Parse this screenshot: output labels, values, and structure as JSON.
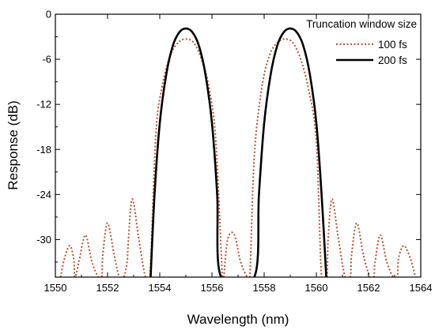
{
  "chart_data": {
    "type": "line",
    "xlabel": "Wavelength (nm)",
    "ylabel": "Response (dB)",
    "xlim": [
      1550,
      1564
    ],
    "ylim": [
      -35,
      0
    ],
    "x_ticks": [
      1550,
      1552,
      1554,
      1556,
      1558,
      1560,
      1562,
      1564
    ],
    "y_ticks": [
      0,
      -6,
      -12,
      -18,
      -24,
      -30
    ],
    "x_tick_labels": [
      "1550",
      "1552",
      "1554",
      "1556",
      "1558",
      "1560",
      "1562",
      "1564"
    ],
    "y_tick_labels": [
      "0",
      "-6",
      "-12",
      "-18",
      "-24",
      "-30"
    ],
    "grid": false,
    "legend": {
      "title": "Truncation window size",
      "placement": "top-right"
    },
    "series": [
      {
        "name": "100 fs",
        "color": "#b5532f",
        "style": "dotted",
        "x": [
          1550.2,
          1550.35,
          1550.55,
          1550.7,
          1550.75,
          1550.9,
          1551.15,
          1551.4,
          1551.65,
          1551.78,
          1551.82,
          1552.0,
          1552.25,
          1552.45,
          1552.62,
          1552.75,
          1552.8,
          1552.95,
          1553.2,
          1553.45,
          1553.62,
          1553.85,
          1554.1,
          1554.4,
          1554.7,
          1555.0,
          1555.3,
          1555.6,
          1555.9,
          1556.15,
          1556.4,
          1556.45,
          1556.6,
          1556.85,
          1557.1,
          1557.35,
          1557.45,
          1557.62,
          1557.9,
          1558.2,
          1558.5,
          1558.8,
          1559.1,
          1559.4,
          1559.7,
          1560.0,
          1560.2,
          1560.4,
          1560.45,
          1560.6,
          1560.85,
          1561.1,
          1561.3,
          1561.35,
          1561.55,
          1561.8,
          1562.05,
          1562.2,
          1562.25,
          1562.45,
          1562.7,
          1562.95,
          1563.1,
          1563.15,
          1563.35,
          1563.6,
          1563.8
        ],
        "y": [
          -35,
          -32.5,
          -30.8,
          -32.5,
          -35,
          -33.0,
          -29.4,
          -33.0,
          -35,
          -35,
          -32.0,
          -27.8,
          -32.0,
          -35,
          -35,
          -33.0,
          -30.0,
          -24.6,
          -30.0,
          -35,
          -35,
          -16.0,
          -9.5,
          -5.5,
          -3.8,
          -3.3,
          -3.8,
          -6.0,
          -10.0,
          -17.0,
          -35,
          -35,
          -30.0,
          -29.3,
          -33.0,
          -35,
          -35,
          -19.0,
          -10.0,
          -5.5,
          -3.8,
          -3.3,
          -3.8,
          -6.0,
          -10.0,
          -17.0,
          -35,
          -35,
          -30.0,
          -24.6,
          -30.0,
          -35,
          -35,
          -32.0,
          -27.8,
          -32.0,
          -35,
          -35,
          -33.0,
          -29.4,
          -33.0,
          -35,
          -35,
          -32.5,
          -30.8,
          -32.5,
          -35
        ]
      },
      {
        "name": "200 fs",
        "color": "#000000",
        "style": "solid",
        "x": [
          1553.65,
          1553.8,
          1554.0,
          1554.25,
          1554.5,
          1554.75,
          1555.0,
          1555.25,
          1555.5,
          1555.75,
          1556.0,
          1556.2,
          1556.35,
          1557.62,
          1557.8,
          1558.0,
          1558.25,
          1558.5,
          1558.75,
          1559.0,
          1559.25,
          1559.5,
          1559.75,
          1560.0,
          1560.2,
          1560.38
        ],
        "y": [
          -35,
          -24.0,
          -14.5,
          -8.0,
          -4.2,
          -2.4,
          -1.9,
          -2.4,
          -4.2,
          -8.0,
          -14.5,
          -24.0,
          -35,
          -35,
          -24.0,
          -14.5,
          -8.0,
          -4.2,
          -2.4,
          -1.9,
          -2.4,
          -4.2,
          -8.0,
          -14.5,
          -24.0,
          -35
        ]
      }
    ]
  }
}
